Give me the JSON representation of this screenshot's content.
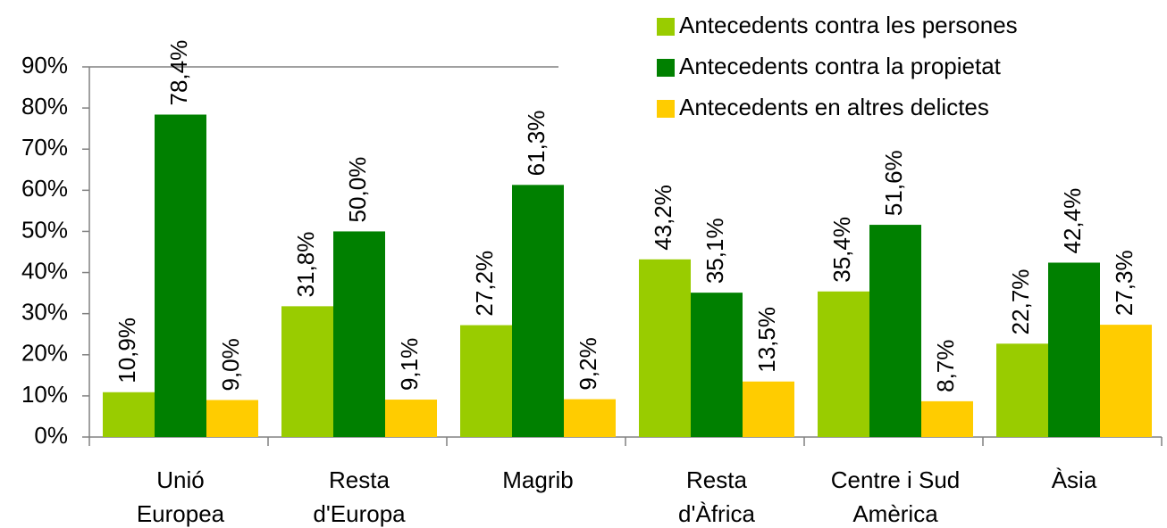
{
  "chart_data": {
    "type": "bar",
    "categories": [
      [
        "Unió",
        "Europea"
      ],
      [
        "Resta",
        "d'Europa"
      ],
      [
        "Magrib"
      ],
      [
        "Resta",
        "d'Àfrica"
      ],
      [
        "Centre i Sud",
        "Amèrica"
      ],
      [
        "Àsia"
      ]
    ],
    "series": [
      {
        "name": "Antecedents contra les persones",
        "color": "#99cc00",
        "values": [
          10.9,
          31.8,
          27.2,
          43.2,
          35.4,
          22.7
        ],
        "value_labels": [
          "10,9%",
          "31,8%",
          "27,2%",
          "43,2%",
          "35,4%",
          "22,7%"
        ]
      },
      {
        "name": "Antecedents contra la propietat",
        "color": "#008000",
        "values": [
          78.4,
          50.0,
          61.3,
          35.1,
          51.6,
          42.4
        ],
        "value_labels": [
          "78,4%",
          "50,0%",
          "61,3%",
          "35,1%",
          "51,6%",
          "42,4%"
        ]
      },
      {
        "name": "Antecedents en altres delictes",
        "color": "#ffcc00",
        "values": [
          9.0,
          9.1,
          9.2,
          13.5,
          8.7,
          27.3
        ],
        "value_labels": [
          "9,0%",
          "9,1%",
          "9,2%",
          "13,5%",
          "8,7%",
          "27,3%"
        ]
      }
    ],
    "ylim": [
      0,
      90
    ],
    "yticks": [
      {
        "value": 0,
        "label": "0%"
      },
      {
        "value": 10,
        "label": "10%"
      },
      {
        "value": 20,
        "label": "20%"
      },
      {
        "value": 30,
        "label": "30%"
      },
      {
        "value": 40,
        "label": "40%"
      },
      {
        "value": 50,
        "label": "50%"
      },
      {
        "value": 60,
        "label": "60%"
      },
      {
        "value": 70,
        "label": "70%"
      },
      {
        "value": 80,
        "label": "80%"
      },
      {
        "value": 90,
        "label": "90%"
      }
    ],
    "legend": "top-right"
  }
}
